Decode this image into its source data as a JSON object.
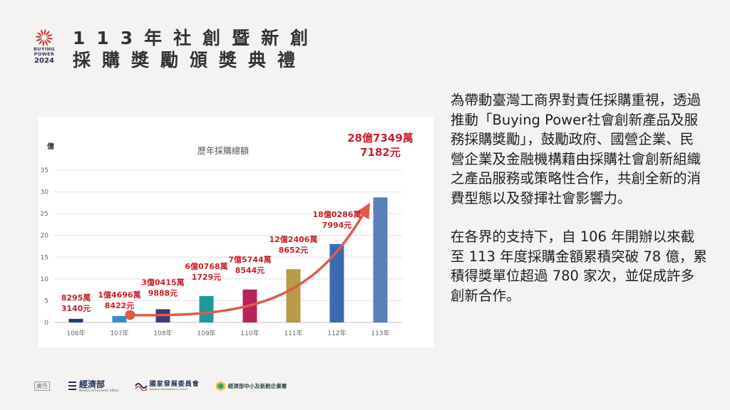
{
  "header": {
    "logo": {
      "line1": "BUYING",
      "line2": "POWER",
      "year": "2024",
      "icon": "sunburst-logo-icon",
      "color": "#c23a3a"
    },
    "title_line1": "113年社創暨新創",
    "title_line2": "採購獎勵頒獎典禮"
  },
  "body": {
    "paragraph1": "為帶動臺灣工商界對責任採購重視，透過推動「Buying Power社會創新產品及服務採購獎勵」，鼓勵政府、國營企業、民營企業及金融機構藉由採購社會創新組織之產品服務或策略性合作，共創全新的消費型態以及發揮社會影響力。",
    "paragraph2": "在各界的支持下，自 106 年開辦以來截至 113 年度採購金額累積突破 78 億，累積得獎單位超過 780 家次，並促成許多創新合作。"
  },
  "footer": {
    "ad_label": "廣告",
    "org1_name": "經濟部",
    "org1_sub": "Ministry of Economic Affairs",
    "org1_icon": "moea-logo-icon",
    "org2_name": "國家發展委員會",
    "org2_sub": "National Development Council",
    "org2_icon": "ndc-logo-icon",
    "org3_name": "經濟部中小及新創企業署",
    "org3_icon": "sme-logo-icon"
  },
  "chart_data": {
    "type": "bar",
    "title": "歷年採購總額",
    "ylabel": "億",
    "ylim": [
      0,
      35
    ],
    "yticks": [
      0,
      5,
      10,
      15,
      20,
      25,
      30,
      35
    ],
    "grid": true,
    "categories": [
      "106年",
      "107年",
      "108年",
      "109年",
      "110年",
      "111年",
      "112年",
      "113年"
    ],
    "values": [
      0.83,
      1.47,
      3.04,
      6.08,
      7.57,
      12.24,
      18.03,
      28.73
    ],
    "colors": [
      "#1f3f7a",
      "#2f8fd0",
      "#3b3a7a",
      "#1f9a9a",
      "#b8245a",
      "#b89a48",
      "#3a6ab0",
      "#5a80b8"
    ],
    "data_labels": [
      [
        "8295萬",
        "3140元"
      ],
      [
        "1億4696萬",
        "8422元"
      ],
      [
        "3億0415萬",
        "9888元"
      ],
      [
        "6億0768萬",
        "1729元"
      ],
      [
        "7億5744萬",
        "8544元"
      ],
      [
        "12億2406萬",
        "8652元"
      ],
      [
        "18億0286萬",
        "7994元"
      ],
      [
        "28億7349萬",
        "7182元"
      ]
    ],
    "label_color": "#c8202a",
    "trend_arrow_color": "#e05a4a"
  }
}
